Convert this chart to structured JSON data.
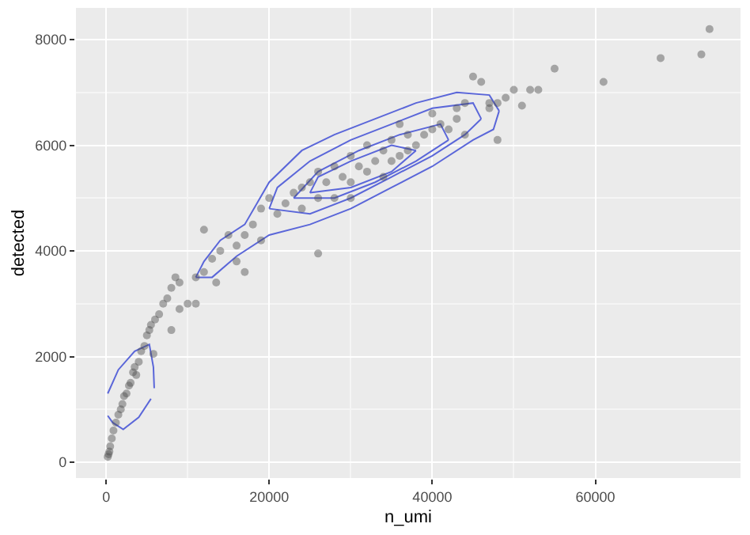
{
  "chart_data": {
    "type": "scatter",
    "xlabel": "n_umi",
    "ylabel": "detected",
    "xlim": [
      -3700,
      77800
    ],
    "ylim": [
      -300,
      8600
    ],
    "xticks": [
      0,
      20000,
      40000,
      60000
    ],
    "yticks": [
      0,
      2000,
      4000,
      6000,
      8000
    ],
    "grid": true,
    "series": [
      {
        "marker": "circle",
        "color": "#4d4d4d",
        "x": [
          200,
          300,
          400,
          500,
          700,
          900,
          1200,
          1500,
          1800,
          2000,
          2200,
          2500,
          2800,
          3000,
          3300,
          3500,
          3700,
          4000,
          4300,
          4700,
          5000,
          5300,
          5500,
          6000,
          6500,
          7000,
          7500,
          8000,
          8500,
          9000,
          5800,
          8000,
          9000,
          11000,
          10000,
          11000,
          12000,
          12000,
          13000,
          13500,
          14000,
          15000,
          16000,
          16000,
          17000,
          17000,
          18000,
          19000,
          20000,
          19000,
          21000,
          22000,
          23000,
          24000,
          24000,
          25000,
          26000,
          26000,
          27000,
          28000,
          28000,
          29000,
          30000,
          30000,
          31000,
          32000,
          32000,
          33000,
          34000,
          34000,
          35000,
          35000,
          36000,
          37000,
          37000,
          38000,
          39000,
          40000,
          40000,
          41000,
          42000,
          43000,
          43000,
          44000,
          44000,
          45000,
          46000,
          47000,
          47000,
          48000,
          48000,
          49000,
          50000,
          51000,
          52000,
          53000,
          55000,
          61000,
          68000,
          73000,
          74000,
          26000,
          30000,
          36000
        ],
        "values": [
          100,
          150,
          200,
          300,
          450,
          600,
          750,
          900,
          1000,
          1100,
          1250,
          1300,
          1450,
          1500,
          1700,
          1800,
          1650,
          1900,
          2100,
          2200,
          2400,
          2500,
          2600,
          2700,
          2800,
          3000,
          3100,
          3300,
          3500,
          3400,
          2050,
          2500,
          2900,
          3000,
          3000,
          3500,
          3600,
          4400,
          3850,
          3400,
          4000,
          4300,
          3800,
          4100,
          3600,
          4300,
          4500,
          4800,
          5000,
          4200,
          4700,
          4900,
          5100,
          5200,
          4800,
          5300,
          5000,
          5500,
          5300,
          5600,
          5000,
          5400,
          5800,
          5300,
          5600,
          6000,
          5500,
          5700,
          5900,
          5400,
          6100,
          5700,
          5800,
          6200,
          5900,
          6000,
          6200,
          6300,
          6600,
          6400,
          6300,
          6700,
          6500,
          6800,
          6200,
          7300,
          7200,
          6700,
          6800,
          6800,
          6100,
          6900,
          7050,
          6750,
          7050,
          7050,
          7450,
          7200,
          7650,
          7720,
          8200,
          3950,
          5000,
          6400
        ]
      },
      {
        "type": "line",
        "marker": "none",
        "color": "#5a66d9",
        "x": [
          11000,
          13000,
          16000,
          20000,
          25000,
          30000,
          35000,
          40000,
          45000,
          47500,
          48200
        ],
        "values": [
          3500,
          3500,
          3900,
          4300,
          4500,
          4800,
          5200,
          5600,
          6100,
          6300,
          6650
        ]
      },
      {
        "type": "line",
        "marker": "none",
        "color": "#5a66d9",
        "x": [
          11000,
          12000,
          14000,
          17000,
          20000,
          24000,
          28000,
          33000,
          38000,
          43000,
          47000,
          48200
        ],
        "values": [
          3500,
          3800,
          4200,
          4500,
          5300,
          5900,
          6200,
          6500,
          6800,
          7000,
          6950,
          6650
        ]
      },
      {
        "type": "line",
        "marker": "none",
        "color": "#5a66d9",
        "x": [
          20000,
          25000,
          30000,
          35000,
          40000,
          44000,
          46000
        ],
        "values": [
          4800,
          4700,
          5000,
          5400,
          5800,
          6200,
          6500
        ]
      },
      {
        "type": "line",
        "marker": "none",
        "color": "#5a66d9",
        "x": [
          20000,
          21000,
          25000,
          30000,
          35000,
          40000,
          45000,
          46000
        ],
        "values": [
          4800,
          5200,
          5700,
          6100,
          6400,
          6700,
          6800,
          6500
        ]
      },
      {
        "type": "line",
        "marker": "none",
        "color": "#5a66d9",
        "x": [
          23000,
          28000,
          33000,
          38000,
          42000
        ],
        "values": [
          5000,
          5000,
          5300,
          5700,
          6100
        ]
      },
      {
        "type": "line",
        "marker": "none",
        "color": "#5a66d9",
        "x": [
          23000,
          26000,
          31000,
          36000,
          41000,
          42000
        ],
        "values": [
          5000,
          5500,
          5900,
          6200,
          6400,
          6100
        ]
      },
      {
        "type": "line",
        "marker": "none",
        "color": "#5a66d9",
        "x": [
          25000,
          30000,
          35000,
          38000
        ],
        "values": [
          5100,
          5200,
          5500,
          5900
        ]
      },
      {
        "type": "line",
        "marker": "none",
        "color": "#5a66d9",
        "x": [
          25000,
          26000,
          30000,
          35000,
          38000
        ],
        "values": [
          5100,
          5400,
          5700,
          6000,
          5900
        ]
      },
      {
        "type": "line",
        "marker": "none",
        "color": "#5a66d9",
        "x": [
          200,
          1500,
          3500,
          5300,
          5800,
          5900
        ],
        "values": [
          1300,
          1750,
          2100,
          2230,
          1800,
          1400
        ]
      },
      {
        "type": "line",
        "marker": "none",
        "color": "#5a66d9",
        "x": [
          200,
          800,
          2100,
          4000,
          5500
        ],
        "values": [
          880,
          750,
          620,
          850,
          1200
        ]
      }
    ]
  }
}
